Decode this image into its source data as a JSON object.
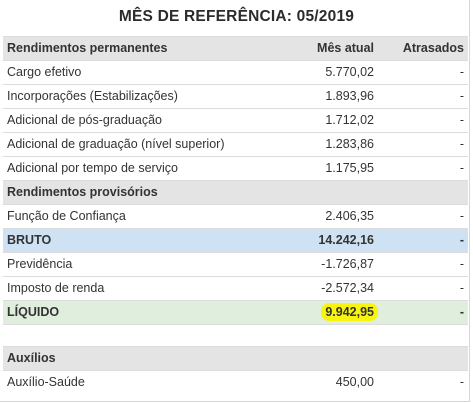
{
  "title": "MÊS DE REFERÊNCIA: 05/2019",
  "header": {
    "col1": "Rendimentos permanentes",
    "col2": "Mês atual",
    "col3": "Atrasados"
  },
  "permanentes": [
    {
      "label": "Cargo efetivo",
      "value": "5.770,02",
      "late": "-"
    },
    {
      "label": "Incorporações (Estabilizações)",
      "value": "1.893,96",
      "late": "-"
    },
    {
      "label": "Adicional de pós-graduação",
      "value": "1.712,02",
      "late": "-"
    },
    {
      "label": "Adicional de graduação (nível superior)",
      "value": "1.283,86",
      "late": "-"
    },
    {
      "label": "Adicional por tempo de serviço",
      "value": "1.175,95",
      "late": "-"
    }
  ],
  "provisorios_title": "Rendimentos provisórios",
  "provisorios": [
    {
      "label": "Função de Confiança",
      "value": "2.406,35",
      "late": "-"
    }
  ],
  "bruto": {
    "label": "BRUTO",
    "value": "14.242,16",
    "late": "-"
  },
  "descontos": [
    {
      "label": "Previdência",
      "value": "-1.726,87",
      "late": "-"
    },
    {
      "label": "Imposto de renda",
      "value": "-2.572,34",
      "late": "-"
    }
  ],
  "liquido": {
    "label": "LÍQUIDO",
    "value": "9.942,95",
    "late": "-",
    "highlight_color": "#f7f50f"
  },
  "auxilios_title": "Auxílios",
  "auxilios": [
    {
      "label": "Auxílio-Saúde",
      "value": "450,00",
      "late": "-"
    }
  ]
}
